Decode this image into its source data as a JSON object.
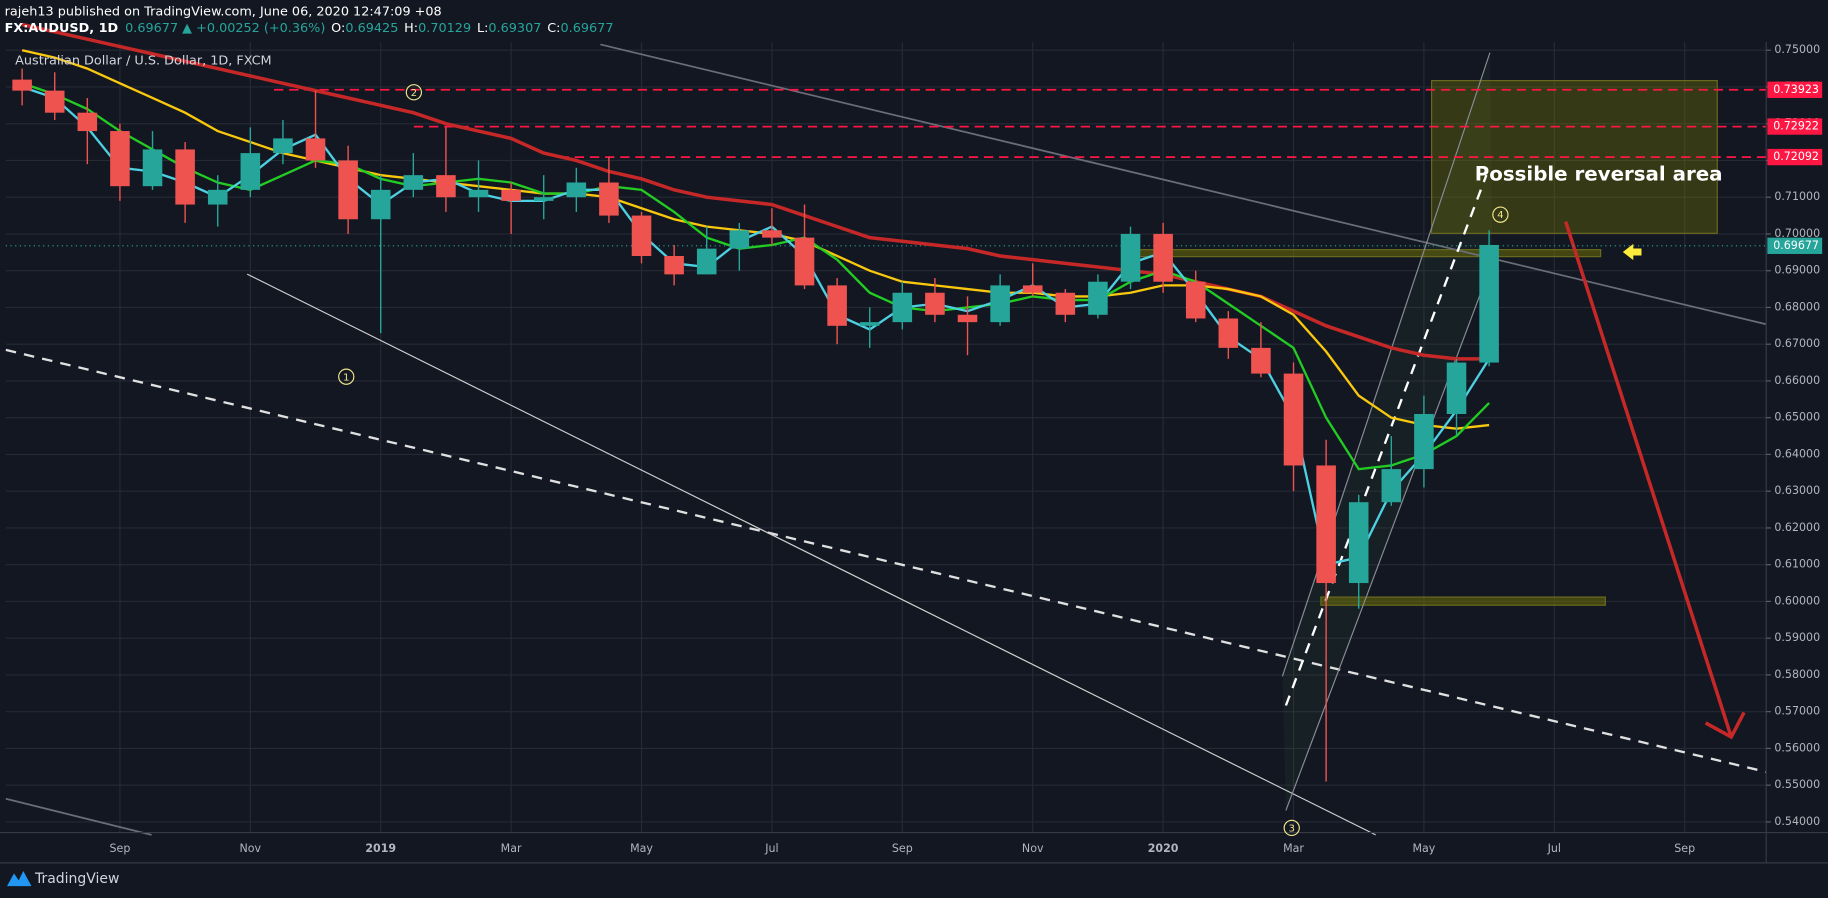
{
  "chart_data": {
    "type": "candlestick",
    "header": {
      "author": "rajeh13 published on TradingView.com, June 06, 2020 12:47:09 +08",
      "symbol": "FX:AUDUSD, 1D",
      "quote": "0.69677 ▲ +0.00252 (+0.36%)",
      "ohlc": [
        [
          "O:",
          "0.69425"
        ],
        [
          "H:",
          "0.70129"
        ],
        [
          "L:",
          "0.69307"
        ],
        [
          "C:",
          "0.69677"
        ]
      ]
    },
    "title": "Australian Dollar / U.S. Dollar, 1D, FXCM",
    "categories": [
      null,
      null,
      null,
      "Sep",
      null,
      null,
      null,
      "Nov",
      null,
      null,
      null,
      "2019",
      null,
      null,
      null,
      "Mar",
      null,
      null,
      null,
      "May",
      null,
      null,
      null,
      "Jul",
      null,
      null,
      null,
      "Sep",
      null,
      null,
      null,
      "Nov",
      null,
      null,
      null,
      "2020",
      null,
      null,
      null,
      "Mar",
      null,
      null,
      null,
      "May",
      null,
      null,
      null,
      "Jul",
      null,
      null,
      null,
      "Sep",
      null,
      null
    ],
    "open": [
      0.742,
      0.739,
      0.733,
      0.728,
      0.713,
      0.723,
      0.708,
      0.712,
      0.722,
      0.726,
      0.72,
      0.704,
      0.712,
      0.716,
      0.71,
      0.712,
      0.709,
      0.71,
      0.714,
      0.705,
      0.694,
      0.689,
      0.696,
      0.701,
      0.699,
      0.686,
      0.675,
      0.676,
      0.684,
      0.678,
      0.676,
      0.686,
      0.684,
      0.678,
      0.687,
      0.7,
      0.687,
      0.677,
      0.669,
      0.662,
      0.637,
      0.605,
      0.627,
      0.636,
      0.651,
      0.665,
      null,
      null,
      null,
      null,
      null,
      null,
      null,
      null
    ],
    "high": [
      0.745,
      0.744,
      0.737,
      0.73,
      0.728,
      0.725,
      0.716,
      0.729,
      0.731,
      0.739,
      0.724,
      0.716,
      0.722,
      0.729,
      0.72,
      0.714,
      0.716,
      0.718,
      0.721,
      0.706,
      0.697,
      0.702,
      0.703,
      0.707,
      0.708,
      0.688,
      0.68,
      0.687,
      0.688,
      0.683,
      0.689,
      0.692,
      0.685,
      0.689,
      0.702,
      0.703,
      0.69,
      0.679,
      0.676,
      0.665,
      0.644,
      0.629,
      0.645,
      0.656,
      0.666,
      0.701,
      null,
      null,
      null,
      null,
      null,
      null,
      null,
      null
    ],
    "low": [
      0.735,
      0.731,
      0.719,
      0.709,
      0.712,
      0.703,
      0.702,
      0.71,
      0.719,
      0.718,
      0.7,
      0.673,
      0.71,
      0.706,
      0.706,
      0.7,
      0.704,
      0.706,
      0.703,
      0.692,
      0.686,
      0.689,
      0.69,
      0.697,
      0.685,
      0.67,
      0.669,
      0.674,
      0.676,
      0.667,
      0.675,
      0.683,
      0.676,
      0.677,
      0.685,
      0.684,
      0.676,
      0.666,
      0.661,
      0.63,
      0.551,
      0.598,
      0.626,
      0.631,
      0.645,
      0.664,
      null,
      null,
      null,
      null,
      null,
      null,
      null,
      null
    ],
    "close": [
      0.739,
      0.733,
      0.728,
      0.713,
      0.723,
      0.708,
      0.712,
      0.722,
      0.726,
      0.72,
      0.704,
      0.712,
      0.716,
      0.71,
      0.712,
      0.709,
      0.71,
      0.714,
      0.705,
      0.694,
      0.689,
      0.696,
      0.701,
      0.699,
      0.686,
      0.675,
      0.676,
      0.684,
      0.678,
      0.676,
      0.686,
      0.684,
      0.678,
      0.687,
      0.7,
      0.687,
      0.677,
      0.669,
      0.662,
      0.637,
      0.605,
      0.627,
      0.636,
      0.651,
      0.665,
      0.697,
      null,
      null,
      null,
      null,
      null,
      null,
      null,
      null
    ],
    "up_color": "#26a69a",
    "down_color": "#ef5350",
    "moving_averages": [
      {
        "color": "#c62828",
        "values": [
          0.757,
          0.755,
          0.753,
          0.751,
          0.749,
          0.747,
          0.745,
          0.743,
          0.741,
          0.739,
          0.737,
          0.735,
          0.733,
          0.73,
          0.728,
          0.726,
          0.722,
          0.72,
          0.717,
          0.715,
          0.712,
          0.71,
          0.709,
          0.708,
          0.705,
          0.702,
          0.699,
          0.698,
          0.697,
          0.696,
          0.694,
          0.693,
          0.692,
          0.691,
          0.69,
          0.689,
          0.687,
          0.685,
          0.683,
          0.679,
          0.675,
          0.672,
          0.669,
          0.667,
          0.666,
          0.666,
          null,
          null,
          null,
          null,
          null,
          null,
          null,
          null
        ]
      },
      {
        "color": "#f9c80e",
        "values": [
          0.75,
          0.748,
          0.745,
          0.741,
          0.737,
          0.733,
          0.728,
          0.725,
          0.722,
          0.72,
          0.718,
          0.716,
          0.715,
          0.714,
          0.713,
          0.712,
          0.711,
          0.711,
          0.71,
          0.707,
          0.704,
          0.702,
          0.701,
          0.7,
          0.698,
          0.694,
          0.69,
          0.687,
          0.686,
          0.685,
          0.684,
          0.684,
          0.683,
          0.683,
          0.684,
          0.686,
          0.686,
          0.685,
          0.683,
          0.678,
          0.668,
          0.656,
          0.65,
          0.648,
          0.647,
          0.648,
          null,
          null,
          null,
          null,
          null,
          null,
          null,
          null
        ]
      },
      {
        "color": "#22cc22",
        "values": [
          0.741,
          0.738,
          0.734,
          0.728,
          0.723,
          0.718,
          0.714,
          0.712,
          0.716,
          0.72,
          0.719,
          0.715,
          0.713,
          0.714,
          0.715,
          0.714,
          0.711,
          0.711,
          0.713,
          0.712,
          0.706,
          0.699,
          0.696,
          0.697,
          0.699,
          0.693,
          0.684,
          0.68,
          0.679,
          0.68,
          0.681,
          0.683,
          0.682,
          0.682,
          0.687,
          0.69,
          0.687,
          0.681,
          0.675,
          0.669,
          0.65,
          0.636,
          0.637,
          0.64,
          0.645,
          0.654,
          null,
          null,
          null,
          null,
          null,
          null,
          null,
          null
        ]
      },
      {
        "color": "#4dd0e1",
        "values": [
          0.74,
          0.737,
          0.729,
          0.718,
          0.717,
          0.714,
          0.71,
          0.716,
          0.723,
          0.727,
          0.715,
          0.708,
          0.714,
          0.715,
          0.711,
          0.709,
          0.709,
          0.712,
          0.712,
          0.7,
          0.692,
          0.691,
          0.698,
          0.702,
          0.694,
          0.678,
          0.674,
          0.68,
          0.681,
          0.679,
          0.682,
          0.686,
          0.68,
          0.681,
          0.692,
          0.695,
          0.684,
          0.672,
          0.666,
          0.65,
          0.61,
          0.612,
          0.63,
          0.64,
          0.652,
          0.666,
          null,
          null,
          null,
          null,
          null,
          null,
          null,
          null
        ]
      }
    ],
    "levels": [
      {
        "value": 0.73923,
        "color": "#ff1744"
      },
      {
        "value": 0.72922,
        "color": "#ff1744"
      },
      {
        "value": 0.72092,
        "color": "#ff1744"
      }
    ],
    "last_price": {
      "value": 0.69677,
      "color": "#26a69a"
    },
    "ylim": [
      0.5371,
      0.7522
    ],
    "yticks": [
      {
        "value": 0.54,
        "label": "0.54000"
      },
      {
        "value": 0.55,
        "label": "0.55000"
      },
      {
        "value": 0.56,
        "label": "0.56000"
      },
      {
        "value": 0.57,
        "label": "0.57000"
      },
      {
        "value": 0.58,
        "label": "0.58000"
      },
      {
        "value": 0.59,
        "label": "0.59000"
      },
      {
        "value": 0.6,
        "label": "0.60000"
      },
      {
        "value": 0.61,
        "label": "0.61000"
      },
      {
        "value": 0.62,
        "label": "0.62000"
      },
      {
        "value": 0.63,
        "label": "0.63000"
      },
      {
        "value": 0.64,
        "label": "0.64000"
      },
      {
        "value": 0.65,
        "label": "0.65000"
      },
      {
        "value": 0.66,
        "label": "0.66000"
      },
      {
        "value": 0.67,
        "label": "0.67000"
      },
      {
        "value": 0.68,
        "label": "0.68000"
      },
      {
        "value": 0.69,
        "label": "0.69000"
      },
      {
        "value": 0.7,
        "label": "0.70000"
      },
      {
        "value": 0.71,
        "label": "0.71000"
      },
      {
        "value": 0.72,
        "label": "0.72000"
      },
      {
        "value": 0.73,
        "label": "0.73000"
      },
      {
        "value": 0.74,
        "label": "0.74000"
      },
      {
        "value": 0.75,
        "label": "0.75000"
      }
    ],
    "grid": true,
    "annotation": "Possible reversal area",
    "markers": [
      "1",
      "2",
      "3",
      "4"
    ],
    "footer": "TradingView"
  }
}
